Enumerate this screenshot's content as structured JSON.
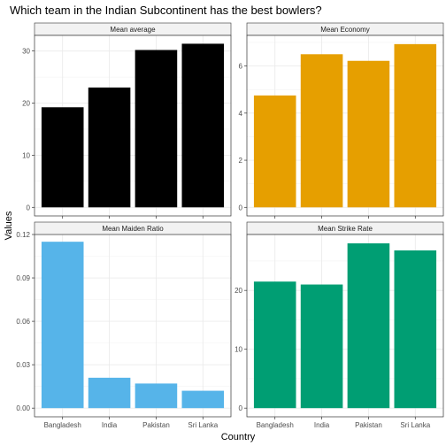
{
  "title": "Which team in the Indian Subcontinent has the best bowlers?",
  "xlabel": "Country",
  "ylabel": "Values",
  "chart_data": {
    "type": "bar",
    "categories": [
      "Bangladesh",
      "India",
      "Pakistan",
      "Sri Lanka"
    ],
    "grid": true,
    "panels": [
      {
        "title": "Mean average",
        "color": "#000000",
        "values": [
          19.2,
          23.0,
          30.2,
          31.4
        ],
        "ylim": [
          0,
          33
        ],
        "yticks": [
          0,
          10,
          20,
          30
        ],
        "ytick_labels": [
          "0",
          "10",
          "20",
          "30"
        ]
      },
      {
        "title": "Mean Economy",
        "color": "#E69F00",
        "values": [
          4.75,
          6.5,
          6.22,
          6.93
        ],
        "ylim": [
          0,
          7.3
        ],
        "yticks": [
          0,
          2,
          4,
          6
        ],
        "ytick_labels": [
          "0",
          "2",
          "4",
          "6"
        ]
      },
      {
        "title": "Mean Maiden Ratio",
        "color": "#56B4E9",
        "values": [
          0.115,
          0.021,
          0.017,
          0.012
        ],
        "ylim": [
          0,
          0.12
        ],
        "yticks": [
          0,
          0.03,
          0.06,
          0.09,
          0.12
        ],
        "ytick_labels": [
          "0.00",
          "0.03",
          "0.06",
          "0.09",
          "0.12"
        ]
      },
      {
        "title": "Mean Strike Rate",
        "color": "#009E73",
        "values": [
          21.5,
          21.0,
          28.0,
          26.8
        ],
        "ylim": [
          0,
          29.5
        ],
        "yticks": [
          0,
          10,
          20
        ],
        "ytick_labels": [
          "0",
          "10",
          "20"
        ]
      }
    ]
  }
}
